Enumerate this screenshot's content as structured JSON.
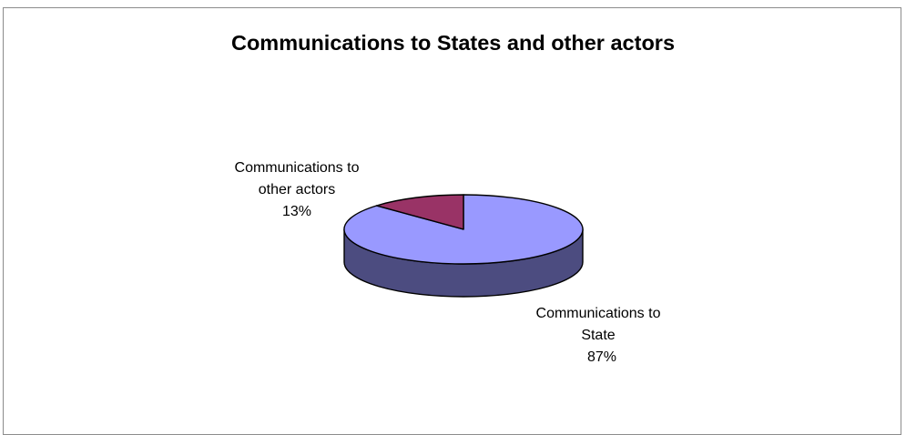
{
  "chart_data": {
    "type": "pie",
    "title": "Communications to States and other actors",
    "legend": "none",
    "style": "3d",
    "slices": [
      {
        "label_lines": [
          "Communications to",
          "State"
        ],
        "label": "Communications to State",
        "value": 87,
        "value_text": "87%",
        "top_color": "#9999FF",
        "side_color": "#4C4C80"
      },
      {
        "label_lines": [
          "Communications to",
          "other actors"
        ],
        "label": "Communications to other actors",
        "value": 13,
        "value_text": "13%",
        "top_color": "#993366",
        "side_color": "#4C1A33"
      }
    ]
  }
}
